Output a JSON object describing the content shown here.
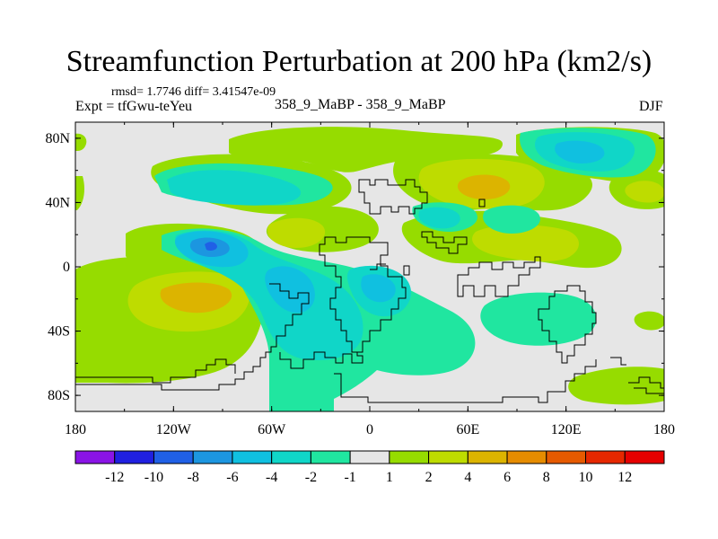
{
  "chart_data": {
    "type": "heatmap",
    "title": "Streamfunction Perturbation at 200 hPa (km2/s)",
    "stats_line": "rmsd= 1.7746 diff= 3.41547e-09",
    "experiment_label": "Expt = tfGwu-teYeu",
    "runs_label": "358_9_MaBP - 358_9_MaBP",
    "season": "DJF",
    "x_ticks": [
      "180",
      "120W",
      "60W",
      "0",
      "60E",
      "120E",
      "180"
    ],
    "y_ticks": [
      "80N",
      "40N",
      "0",
      "40S",
      "80S"
    ],
    "lon_range": [
      -180,
      180
    ],
    "lat_range": [
      -90,
      90
    ],
    "colorbar": {
      "labels": [
        "-12",
        "-10",
        "-8",
        "-6",
        "-4",
        "-2",
        "-1",
        "1",
        "2",
        "4",
        "6",
        "8",
        "10",
        "12"
      ],
      "colors": [
        "#8a14e6",
        "#2020e0",
        "#2060e6",
        "#1c96e0",
        "#10c0e0",
        "#10d6c8",
        "#20e6a0",
        "#e6e6e6",
        "#96dc00",
        "#bedc00",
        "#dcb400",
        "#e68c00",
        "#e65a00",
        "#e62800",
        "#e60000"
      ]
    },
    "features": [
      {
        "name": "positive-band-north-atlantic",
        "level": "2",
        "lon": -20,
        "lat": 75
      },
      {
        "name": "positive-center-north-pacific-east",
        "level": "4",
        "lon": 60,
        "lat": 47
      },
      {
        "name": "negative-center-northeast-asia",
        "level": "-2",
        "lon": 105,
        "lat": 67
      },
      {
        "name": "negative-center-east-pacific",
        "level": "-6",
        "lon": -97,
        "lat": 12
      },
      {
        "name": "positive-center-south-pacific",
        "level": "6",
        "lon": -120,
        "lat": -17
      },
      {
        "name": "negative-region-south-atlantic",
        "level": "-4",
        "lon": -30,
        "lat": -25
      }
    ]
  }
}
